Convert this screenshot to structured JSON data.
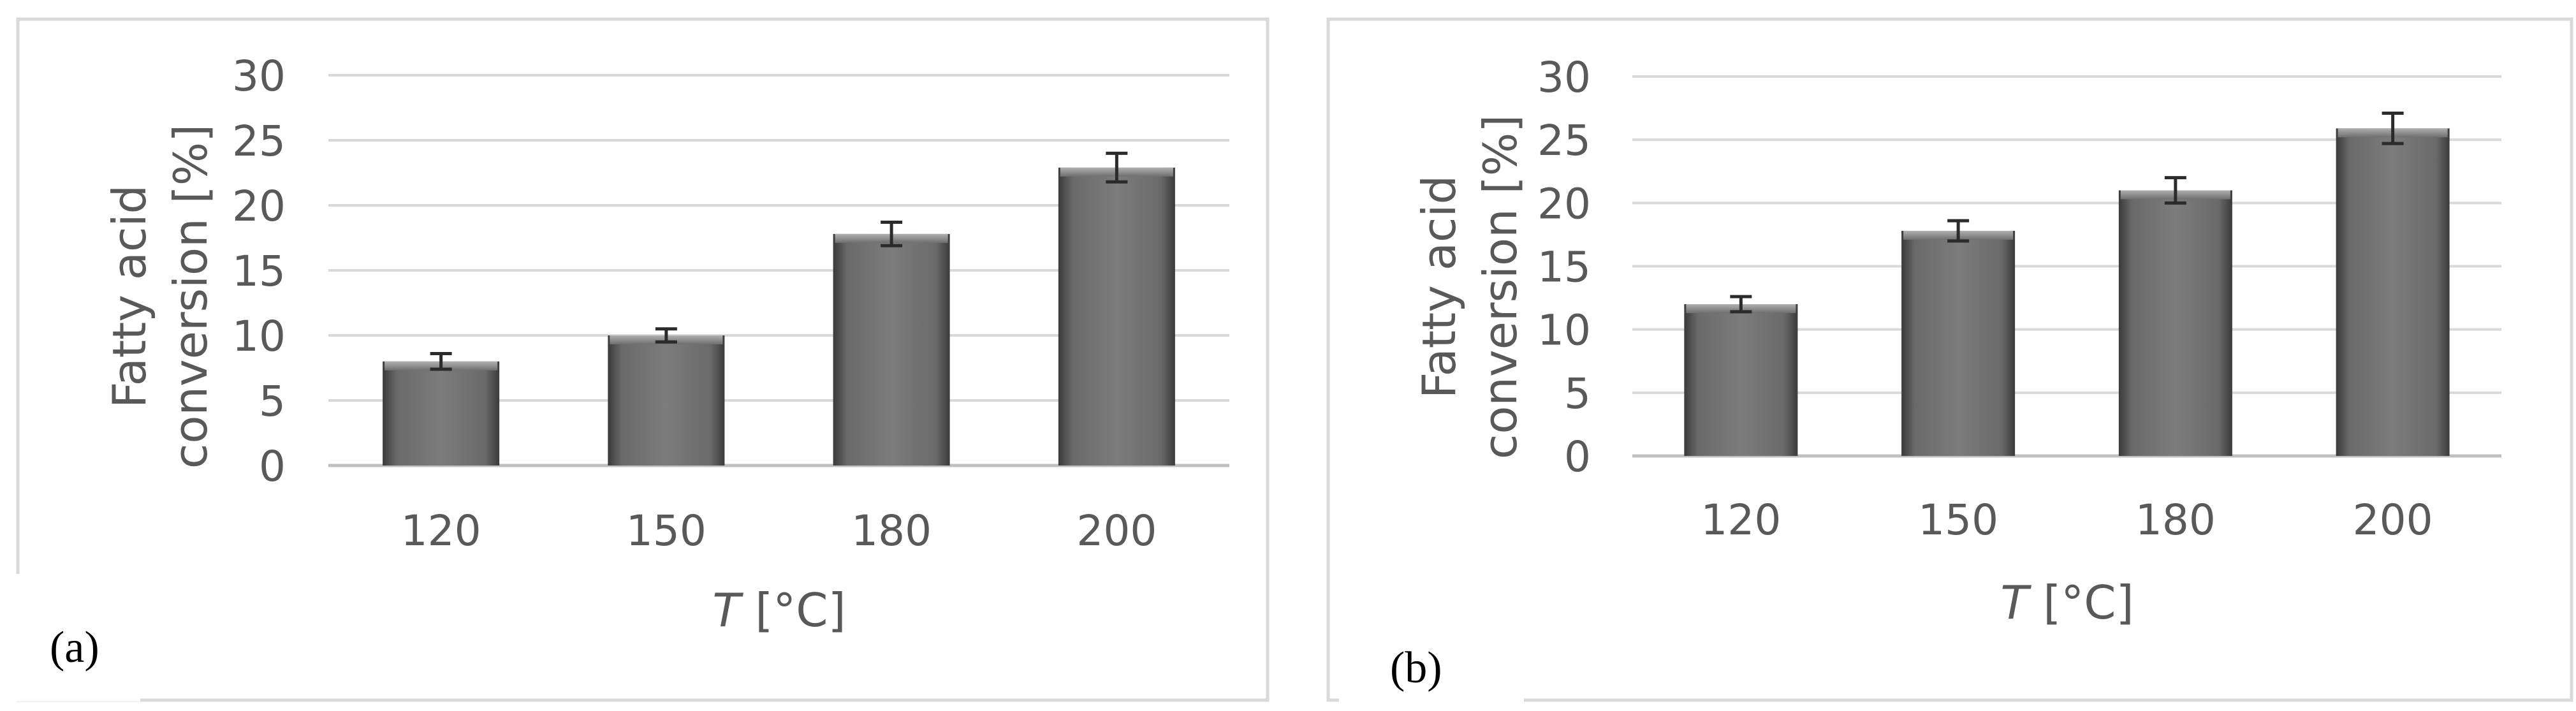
{
  "chart_data": [
    {
      "type": "bar",
      "panel_label": "(a)",
      "categories": [
        "120",
        "150",
        "180",
        "200"
      ],
      "values": [
        8.0,
        10.0,
        17.8,
        22.9
      ],
      "errors": [
        0.6,
        0.5,
        0.9,
        1.1
      ],
      "ylabel_line1": "Fatty acid",
      "ylabel_line2": "conversion [%]",
      "xlabel_italic": "T",
      "xlabel_rest": " [°C]",
      "ylim": [
        0,
        30
      ],
      "yticks": [
        0,
        5,
        10,
        15,
        20,
        25,
        30
      ],
      "grid": true,
      "bar_color": "#6b6b6b"
    },
    {
      "type": "bar",
      "panel_label": "(b)",
      "categories": [
        "120",
        "150",
        "180",
        "200"
      ],
      "values": [
        12.0,
        17.8,
        21.0,
        25.9
      ],
      "errors": [
        0.6,
        0.8,
        1.0,
        1.2
      ],
      "ylabel_line1": "Fatty acid",
      "ylabel_line2": "conversion [%]",
      "xlabel_italic": "T",
      "xlabel_rest": " [°C]",
      "ylim": [
        0,
        30
      ],
      "yticks": [
        0,
        5,
        10,
        15,
        20,
        25,
        30
      ],
      "grid": true,
      "bar_color": "#6b6b6b"
    }
  ]
}
